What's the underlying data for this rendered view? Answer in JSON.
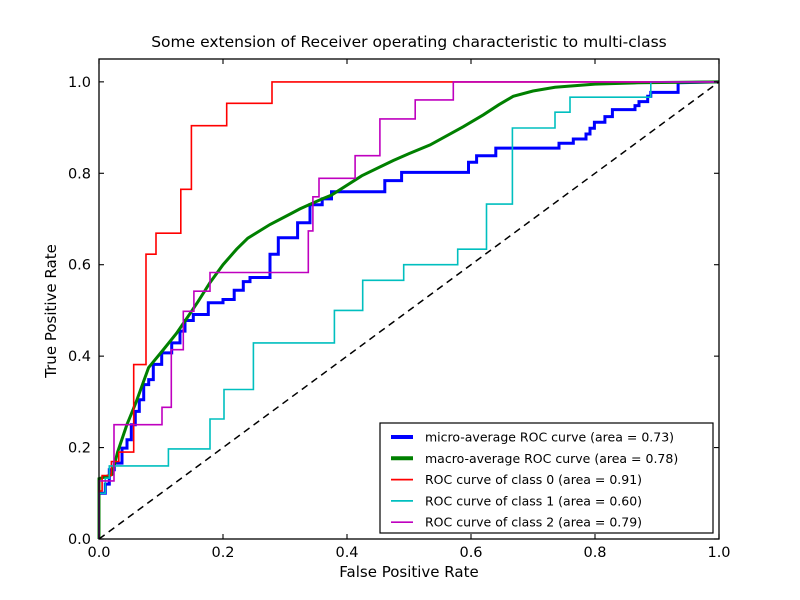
{
  "figure": {
    "background": "#ffffff",
    "frame_color": "#000000"
  },
  "chart_data": {
    "type": "line",
    "title": "Some extension of Receiver operating characteristic to multi-class",
    "xlabel": "False Positive Rate",
    "ylabel": "True Positive Rate",
    "xlim": [
      0.0,
      1.0
    ],
    "ylim": [
      0.0,
      1.05
    ],
    "grid": false,
    "legend_position": "lower right",
    "xticks": [
      0.0,
      0.2,
      0.4,
      0.6,
      0.8,
      1.0
    ],
    "xtick_labels": [
      "0.0",
      "0.2",
      "0.4",
      "0.6",
      "0.8",
      "1.0"
    ],
    "yticks": [
      0.0,
      0.2,
      0.4,
      0.6,
      0.8,
      1.0
    ],
    "ytick_labels": [
      "0.0",
      "0.2",
      "0.4",
      "0.6",
      "0.8",
      "1.0"
    ],
    "series": [
      {
        "id": "micro-average-roc-curve",
        "name": "micro-average ROC curve (area = 0.73)",
        "area": 0.73,
        "color": "#0000ff",
        "width": 3,
        "dash": "",
        "legend": true,
        "points": [
          [
            0,
            0
          ],
          [
            0,
            0.1
          ],
          [
            0.0102,
            0.1
          ],
          [
            0.0102,
            0.12
          ],
          [
            0.0166,
            0.12
          ],
          [
            0.0166,
            0.1513
          ],
          [
            0.0247,
            0.1513
          ],
          [
            0.0247,
            0.166
          ],
          [
            0.0371,
            0.166
          ],
          [
            0.0371,
            0.1989
          ],
          [
            0.0452,
            0.1989
          ],
          [
            0.0452,
            0.2171
          ],
          [
            0.0521,
            0.2171
          ],
          [
            0.0521,
            0.25
          ],
          [
            0.0586,
            0.25
          ],
          [
            0.0586,
            0.2792
          ],
          [
            0.065,
            0.2792
          ],
          [
            0.065,
            0.3048
          ],
          [
            0.0721,
            0.3048
          ],
          [
            0.0721,
            0.3377
          ],
          [
            0.0802,
            0.3377
          ],
          [
            0.0802,
            0.3487
          ],
          [
            0.0876,
            0.3487
          ],
          [
            0.0876,
            0.382
          ],
          [
            0.1011,
            0.382
          ],
          [
            0.1011,
            0.407
          ],
          [
            0.1172,
            0.407
          ],
          [
            0.1172,
            0.429
          ],
          [
            0.1306,
            0.429
          ],
          [
            0.1306,
            0.4547
          ],
          [
            0.1387,
            0.4547
          ],
          [
            0.1387,
            0.478
          ],
          [
            0.1521,
            0.478
          ],
          [
            0.1521,
            0.4912
          ],
          [
            0.1763,
            0.4912
          ],
          [
            0.1763,
            0.5169
          ],
          [
            0.2,
            0.5169
          ],
          [
            0.2,
            0.524
          ],
          [
            0.218,
            0.524
          ],
          [
            0.218,
            0.544
          ],
          [
            0.2328,
            0.544
          ],
          [
            0.2328,
            0.563
          ],
          [
            0.2435,
            0.563
          ],
          [
            0.2435,
            0.572
          ],
          [
            0.2758,
            0.572
          ],
          [
            0.2758,
            0.623
          ],
          [
            0.2892,
            0.623
          ],
          [
            0.2892,
            0.659
          ],
          [
            0.3204,
            0.659
          ],
          [
            0.3204,
            0.692
          ],
          [
            0.3403,
            0.692
          ],
          [
            0.3403,
            0.731
          ],
          [
            0.36,
            0.731
          ],
          [
            0.36,
            0.744
          ],
          [
            0.375,
            0.744
          ],
          [
            0.375,
            0.7595
          ],
          [
            0.461,
            0.7595
          ],
          [
            0.461,
            0.784
          ],
          [
            0.488,
            0.784
          ],
          [
            0.488,
            0.802
          ],
          [
            0.596,
            0.802
          ],
          [
            0.596,
            0.824
          ],
          [
            0.609,
            0.824
          ],
          [
            0.609,
            0.8385
          ],
          [
            0.64,
            0.8385
          ],
          [
            0.64,
            0.855
          ],
          [
            0.742,
            0.855
          ],
          [
            0.742,
            0.8655
          ],
          [
            0.765,
            0.8655
          ],
          [
            0.765,
            0.875
          ],
          [
            0.7855,
            0.875
          ],
          [
            0.7855,
            0.886
          ],
          [
            0.792,
            0.886
          ],
          [
            0.792,
            0.8985
          ],
          [
            0.799,
            0.8985
          ],
          [
            0.799,
            0.9115
          ],
          [
            0.816,
            0.9115
          ],
          [
            0.816,
            0.924
          ],
          [
            0.828,
            0.924
          ],
          [
            0.828,
            0.9393
          ],
          [
            0.8645,
            0.9393
          ],
          [
            0.8645,
            0.948
          ],
          [
            0.871,
            0.948
          ],
          [
            0.871,
            0.9568
          ],
          [
            0.885,
            0.9568
          ],
          [
            0.885,
            0.9686
          ],
          [
            0.89,
            0.9686
          ],
          [
            0.89,
            0.977
          ],
          [
            0.934,
            0.977
          ],
          [
            0.934,
            0.998
          ],
          [
            1,
            1
          ]
        ]
      },
      {
        "id": "macro-average-roc-curve",
        "name": "macro-average ROC curve (area = 0.78)",
        "area": 0.78,
        "color": "#008000",
        "width": 3,
        "dash": "",
        "legend": true,
        "points": [
          [
            0,
            0
          ],
          [
            0,
            0.132
          ],
          [
            0.01,
            0.136
          ],
          [
            0.021,
            0.141
          ],
          [
            0.03,
            0.19
          ],
          [
            0.045,
            0.25
          ],
          [
            0.06,
            0.3
          ],
          [
            0.08,
            0.375
          ],
          [
            0.104,
            0.4145
          ],
          [
            0.125,
            0.45
          ],
          [
            0.144,
            0.4876
          ],
          [
            0.16,
            0.52
          ],
          [
            0.179,
            0.5608
          ],
          [
            0.2,
            0.6
          ],
          [
            0.222,
            0.634
          ],
          [
            0.24,
            0.658
          ],
          [
            0.2758,
            0.688
          ],
          [
            0.31,
            0.712
          ],
          [
            0.324,
            0.722
          ],
          [
            0.36,
            0.744
          ],
          [
            0.3748,
            0.752
          ],
          [
            0.4237,
            0.7946
          ],
          [
            0.4747,
            0.828
          ],
          [
            0.5,
            0.843
          ],
          [
            0.534,
            0.862
          ],
          [
            0.5876,
            0.902
          ],
          [
            0.62,
            0.928
          ],
          [
            0.645,
            0.95
          ],
          [
            0.668,
            0.9685
          ],
          [
            0.7,
            0.98
          ],
          [
            0.7355,
            0.988
          ],
          [
            0.8,
            0.995
          ],
          [
            0.87,
            0.998
          ],
          [
            1,
            1
          ]
        ]
      },
      {
        "id": "roc-curve-class-0",
        "name": "ROC curve of class 0 (area = 0.91)",
        "area": 0.91,
        "color": "#ff0000",
        "width": 1.6,
        "dash": "",
        "legend": true,
        "points": [
          [
            0,
            0
          ],
          [
            0,
            0.105
          ],
          [
            0.005,
            0.105
          ],
          [
            0.005,
            0.139
          ],
          [
            0.02,
            0.139
          ],
          [
            0.02,
            0.1695
          ],
          [
            0.032,
            0.1695
          ],
          [
            0.032,
            0.19
          ],
          [
            0.056,
            0.19
          ],
          [
            0.056,
            0.3816
          ],
          [
            0.0758,
            0.3816
          ],
          [
            0.0758,
            0.623
          ],
          [
            0.092,
            0.623
          ],
          [
            0.092,
            0.669
          ],
          [
            0.132,
            0.669
          ],
          [
            0.132,
            0.765
          ],
          [
            0.149,
            0.765
          ],
          [
            0.149,
            0.904
          ],
          [
            0.206,
            0.904
          ],
          [
            0.206,
            0.953
          ],
          [
            0.279,
            0.953
          ],
          [
            0.279,
            1
          ],
          [
            1,
            1
          ]
        ]
      },
      {
        "id": "roc-curve-class-1",
        "name": "ROC curve of class 1 (area = 0.60)",
        "area": 0.6,
        "color": "#00bfbf",
        "width": 1.6,
        "dash": "",
        "legend": true,
        "points": [
          [
            0,
            0
          ],
          [
            0,
            0.1
          ],
          [
            0.0102,
            0.1
          ],
          [
            0.0102,
            0.133
          ],
          [
            0.0166,
            0.133
          ],
          [
            0.0166,
            0.16
          ],
          [
            0.112,
            0.16
          ],
          [
            0.112,
            0.197
          ],
          [
            0.179,
            0.197
          ],
          [
            0.179,
            0.2625
          ],
          [
            0.2016,
            0.2625
          ],
          [
            0.2016,
            0.327
          ],
          [
            0.249,
            0.327
          ],
          [
            0.249,
            0.429
          ],
          [
            0.3796,
            0.429
          ],
          [
            0.3796,
            0.5
          ],
          [
            0.4253,
            0.5
          ],
          [
            0.4253,
            0.566
          ],
          [
            0.4914,
            0.566
          ],
          [
            0.4914,
            0.6
          ],
          [
            0.5785,
            0.6
          ],
          [
            0.5785,
            0.634
          ],
          [
            0.625,
            0.634
          ],
          [
            0.625,
            0.7325
          ],
          [
            0.6667,
            0.7325
          ],
          [
            0.6667,
            0.899
          ],
          [
            0.7355,
            0.899
          ],
          [
            0.7355,
            0.9336
          ],
          [
            0.7597,
            0.9336
          ],
          [
            0.7597,
            0.9664
          ],
          [
            0.89,
            0.9664
          ],
          [
            0.89,
            1
          ],
          [
            1,
            1
          ]
        ]
      },
      {
        "id": "roc-curve-class-2",
        "name": "ROC curve of class 2 (area = 0.79)",
        "area": 0.79,
        "color": "#bf00bf",
        "width": 1.6,
        "dash": "",
        "legend": true,
        "points": [
          [
            0,
            0
          ],
          [
            0,
            0.127
          ],
          [
            0.0242,
            0.127
          ],
          [
            0.0242,
            0.25
          ],
          [
            0.1016,
            0.25
          ],
          [
            0.1016,
            0.288
          ],
          [
            0.1166,
            0.288
          ],
          [
            0.1166,
            0.414
          ],
          [
            0.136,
            0.414
          ],
          [
            0.136,
            0.498
          ],
          [
            0.153,
            0.498
          ],
          [
            0.153,
            0.542
          ],
          [
            0.179,
            0.542
          ],
          [
            0.179,
            0.583
          ],
          [
            0.3376,
            0.583
          ],
          [
            0.3376,
            0.674
          ],
          [
            0.345,
            0.674
          ],
          [
            0.345,
            0.7485
          ],
          [
            0.3548,
            0.7485
          ],
          [
            0.3548,
            0.789
          ],
          [
            0.413,
            0.789
          ],
          [
            0.413,
            0.8385
          ],
          [
            0.453,
            0.8385
          ],
          [
            0.453,
            0.919
          ],
          [
            0.51,
            0.919
          ],
          [
            0.51,
            0.9605
          ],
          [
            0.5715,
            0.9605
          ],
          [
            0.5715,
            1
          ],
          [
            1,
            1
          ]
        ]
      },
      {
        "id": "chance-diagonal",
        "name": "chance diagonal",
        "color": "#000000",
        "width": 1.5,
        "dash": "7 5",
        "legend": false,
        "points": [
          [
            0,
            0
          ],
          [
            1,
            1
          ]
        ]
      }
    ]
  }
}
